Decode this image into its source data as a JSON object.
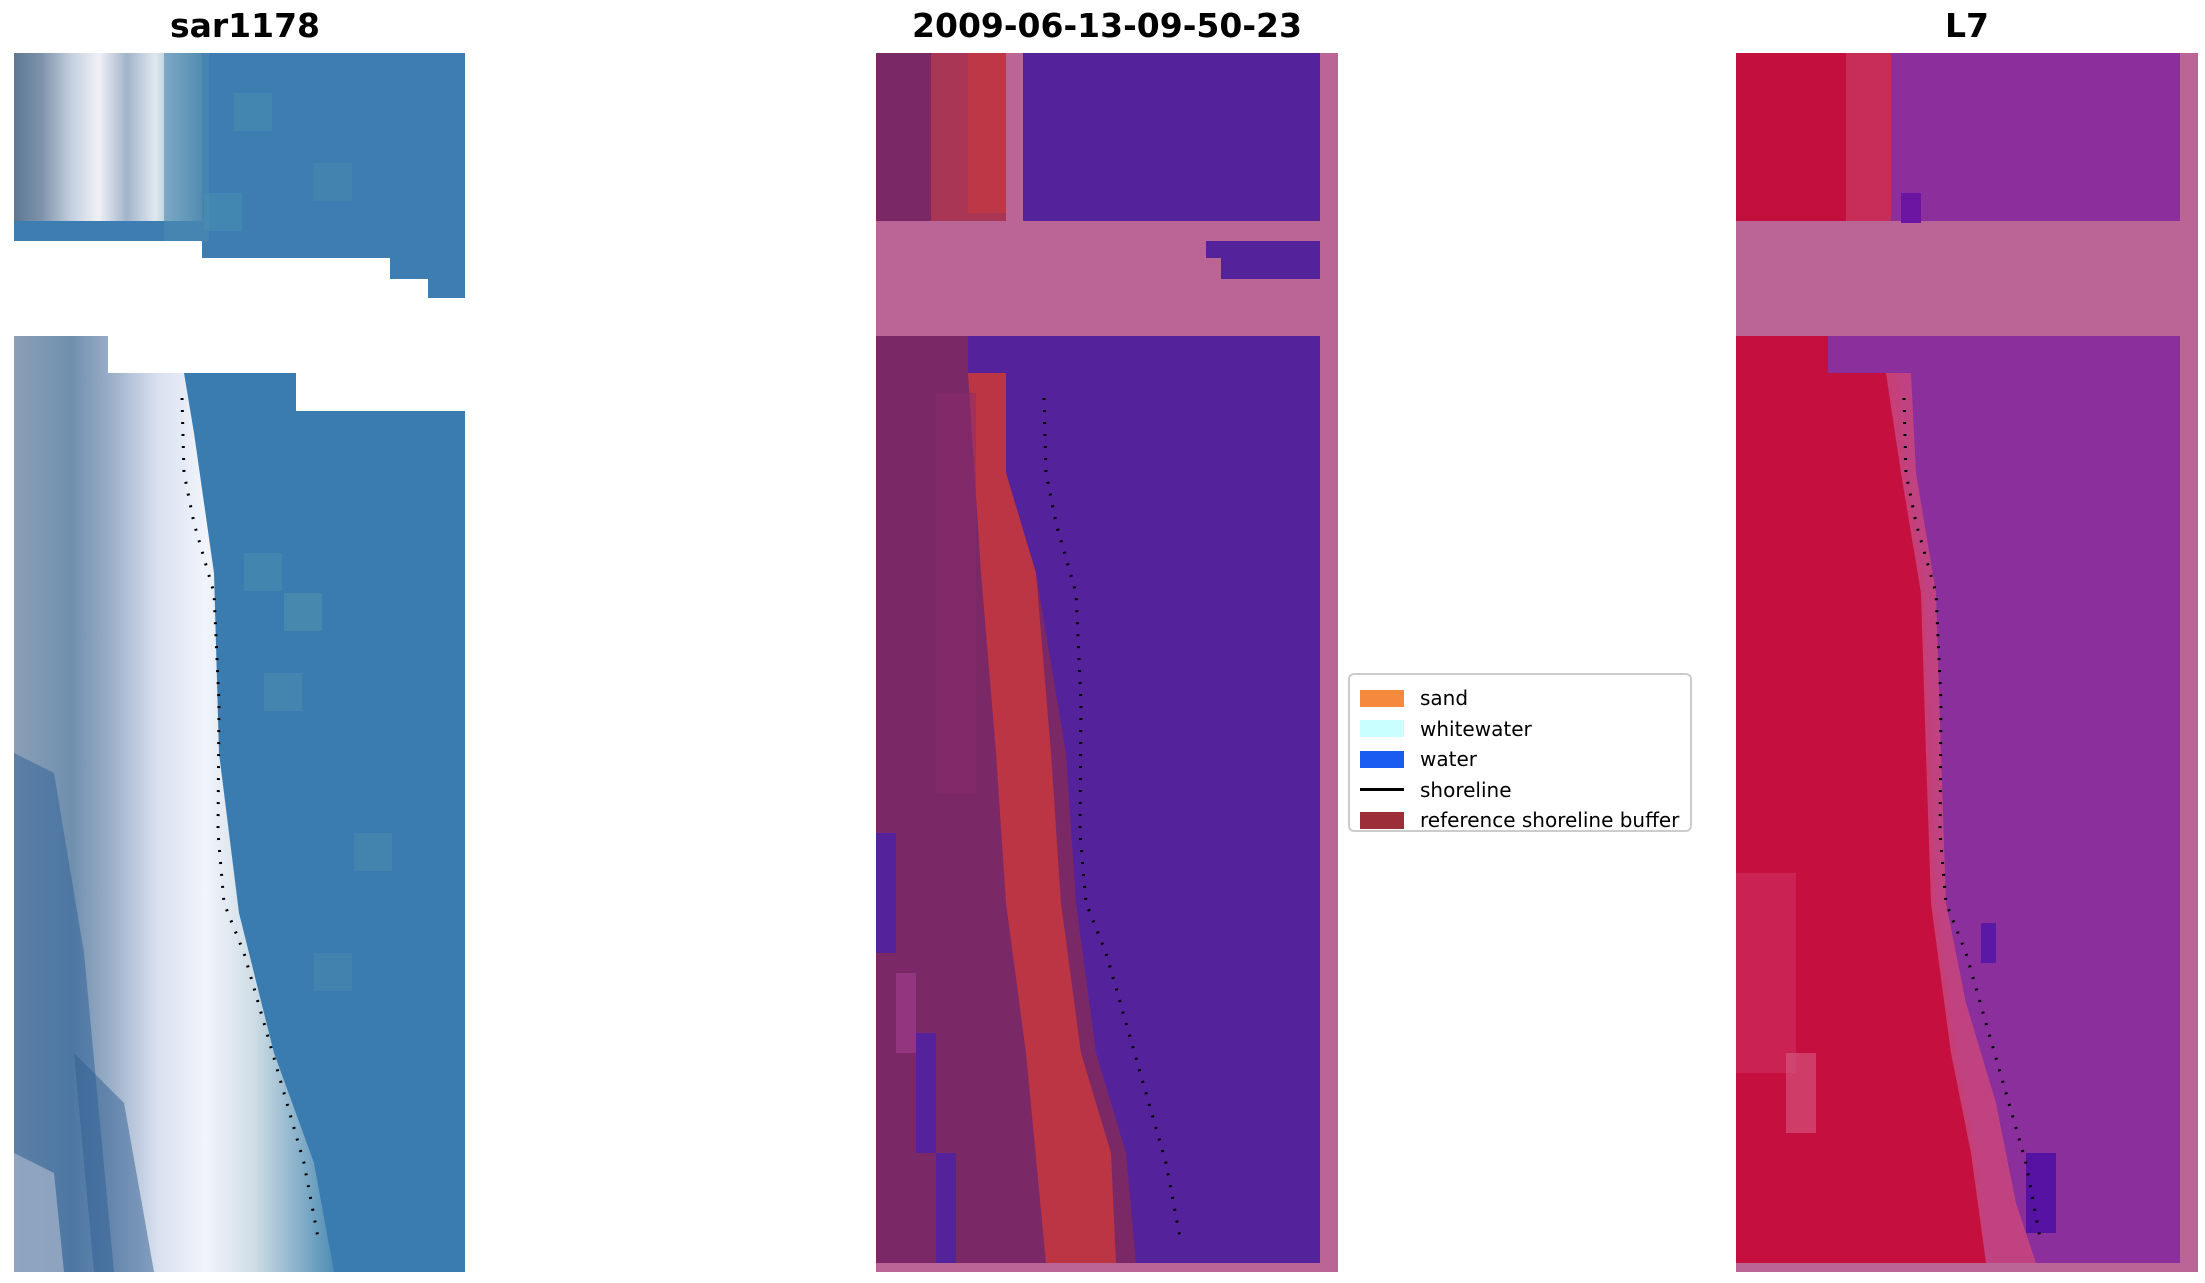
{
  "panels": {
    "left_title": "sar1178",
    "middle_title": "2009-06-13-09-50-23",
    "right_title": "L7"
  },
  "legend": {
    "items": [
      {
        "label": "sand",
        "color": "#f58a3f",
        "kind": "swatch"
      },
      {
        "label": "whitewater",
        "color": "#c9fffe",
        "kind": "swatch"
      },
      {
        "label": "water",
        "color": "#1b5cf0",
        "kind": "swatch"
      },
      {
        "label": "shoreline",
        "color": "#000000",
        "kind": "line"
      },
      {
        "label": "reference shoreline buffer",
        "color": "#9b2e36",
        "kind": "swatch"
      }
    ]
  },
  "colors": {
    "rgb_water": "#3b7eb0",
    "rgb_sand_bright": "#e9eef8",
    "class_water": "#55249b",
    "class_buffer": "#bb3545",
    "class_land": "#7c2866",
    "nodata_mask": "#ba6595",
    "nir_land": "#c5103f",
    "nir_water": "#8a2f9c",
    "shoreline_dots": "#000000"
  }
}
